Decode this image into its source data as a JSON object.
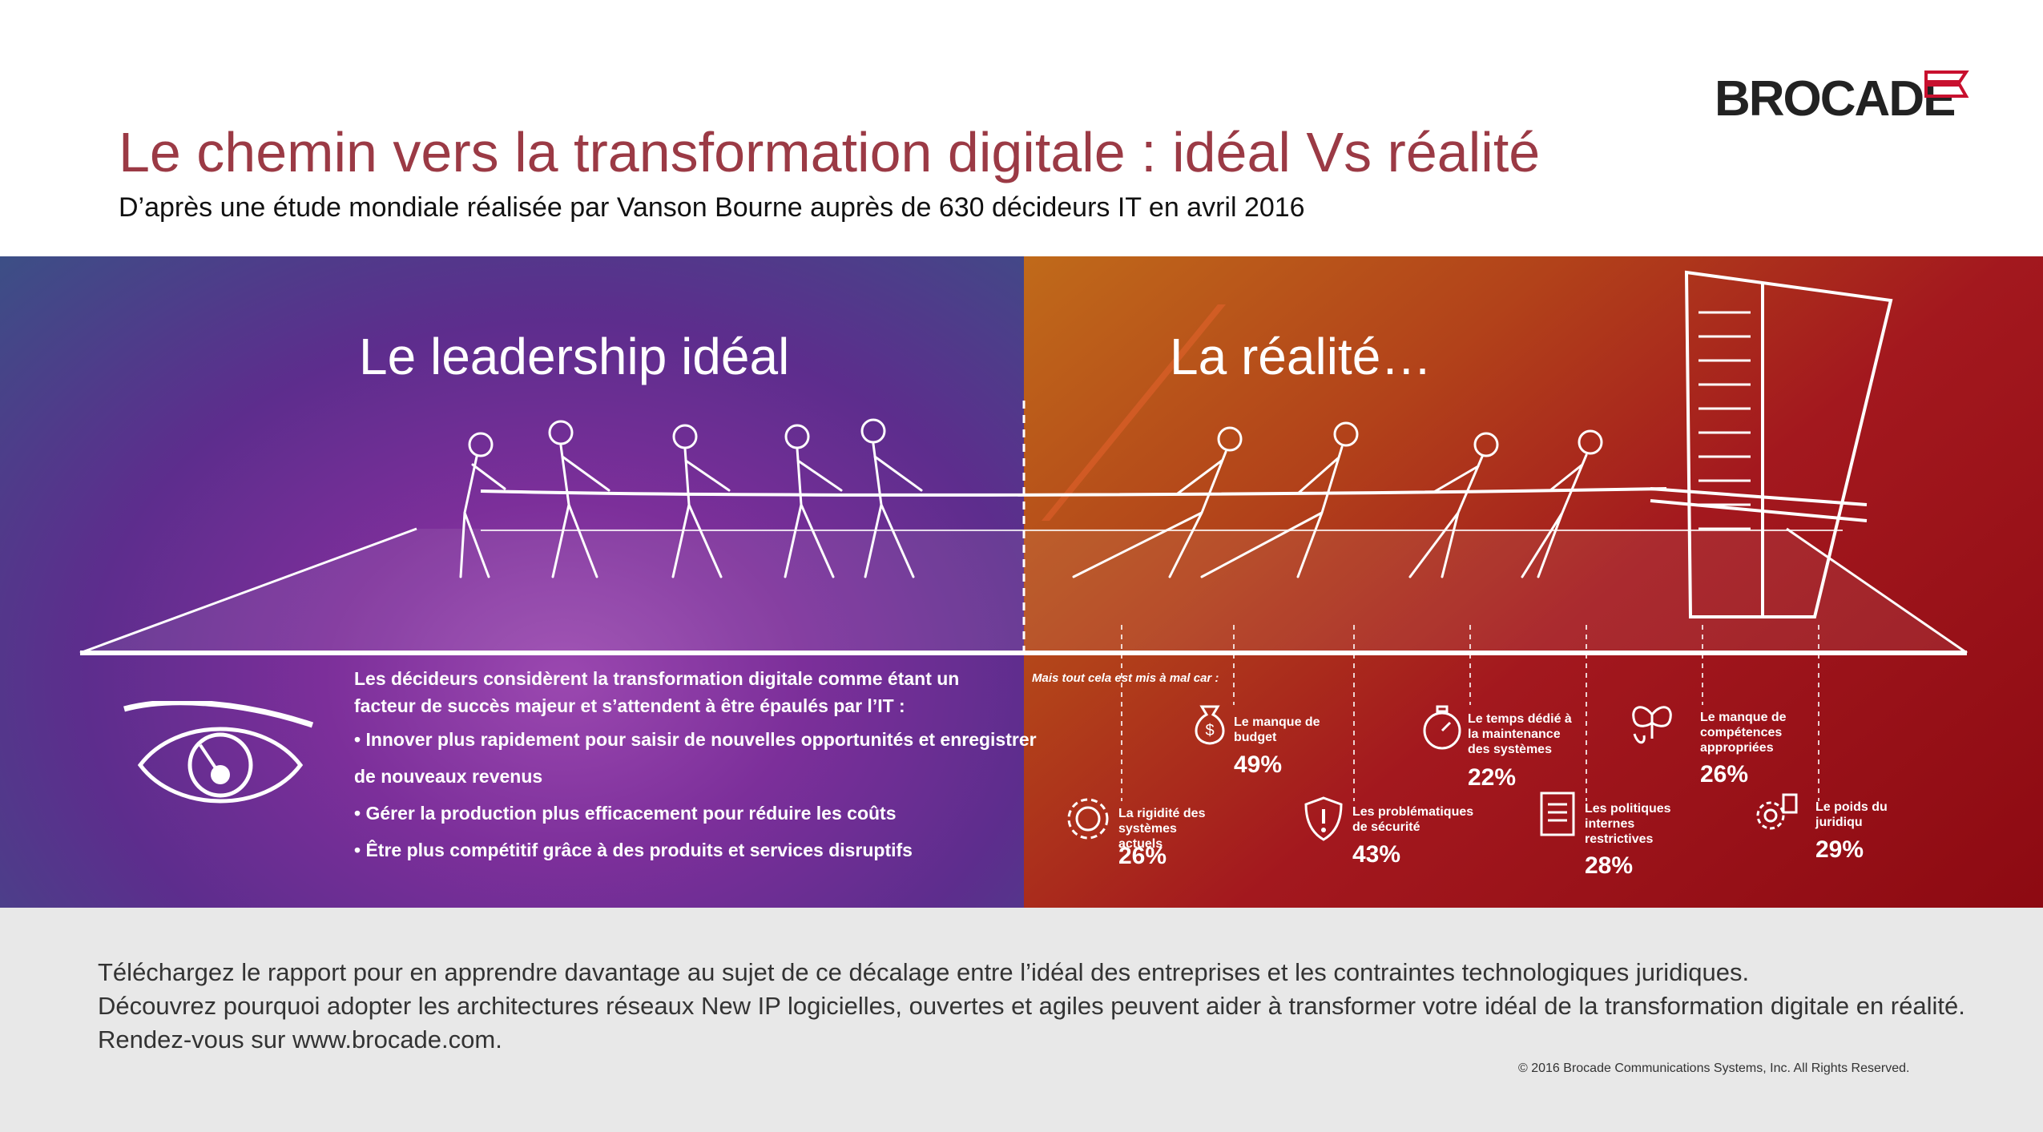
{
  "brand": {
    "name": "BROCADE",
    "logo_icon": "brocade-wings-icon",
    "logo_color": "#c8102e"
  },
  "header": {
    "title": "Le chemin vers la transformation digitale : idéal Vs réalité",
    "subtitle": "D’après une étude mondiale réalisée par Vanson Bourne auprès de 630 décideurs IT en avril 2016"
  },
  "ideal": {
    "heading": "Le leadership idéal",
    "intro": "Les décideurs considèrent la transformation digitale comme étant un facteur de succès majeur et s’attendent à être épaulés par l’IT :",
    "bullets": [
      "• Innover plus rapidement pour saisir de nouvelles opportunités et enregistrer",
      "de nouveaux revenus",
      "• Gérer la production plus efficacement pour réduire les coûts",
      "• Être plus compétitif grâce à des produits et services disruptifs"
    ],
    "icon": "eye-icon"
  },
  "reality": {
    "heading": "La réalité…",
    "lead": "Mais tout cela est mis à mal car :",
    "stats": [
      {
        "label": "Le manque de budget",
        "value": "49%",
        "icon": "money-bag-icon"
      },
      {
        "label": "Le temps dédié à la maintenance des systèmes",
        "value": "22%",
        "icon": "stopwatch-icon"
      },
      {
        "label": "Le manque de compétences appropriées",
        "value": "26%",
        "icon": "butterfly-icon"
      },
      {
        "label": "La rigidité des systèmes actuels",
        "value": "26%",
        "icon": "gear-icon"
      },
      {
        "label": "Les problématiques de sécurité",
        "value": "43%",
        "icon": "shield-icon"
      },
      {
        "label": "Les politiques internes restrictives",
        "value": "28%",
        "icon": "document-icon"
      },
      {
        "label": "Le poids du juridiqu",
        "value": "29%",
        "icon": "gears-icon"
      }
    ]
  },
  "footer": {
    "lines": [
      "Téléchargez le rapport pour en apprendre davantage au sujet de ce décalage entre l’idéal des entreprises et les contraintes technologiques juridiques.",
      "Découvrez pourquoi adopter les architectures réseaux New IP logicielles, ouvertes et agiles peuvent aider à transformer votre idéal de la transformation digitale en réalité.",
      "Rendez-vous sur www.brocade.com."
    ],
    "copyright": "© 2016 Brocade Communications Systems, Inc. All Rights Reserved."
  },
  "colors": {
    "title": "#9b3a45",
    "left_band": "#6a2e95",
    "right_band": "#a3181e",
    "footer_bg": "#e8e8e8"
  }
}
